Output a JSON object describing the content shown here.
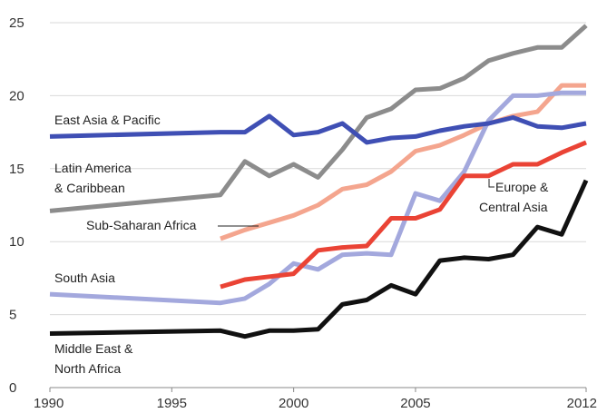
{
  "chart_data": {
    "type": "line",
    "title": "",
    "xlabel": "",
    "ylabel": "",
    "xlim": [
      1990,
      2012
    ],
    "ylim": [
      0,
      25
    ],
    "grid": true,
    "legend": "inline labels",
    "x_ticks": [
      "1990",
      "1995",
      "2000",
      "2005",
      "2012"
    ],
    "y_ticks": [
      "0",
      "5",
      "10",
      "15",
      "20",
      "25"
    ],
    "series": [
      {
        "name": "Latin America & Caribbean",
        "color": "#8c8c8c",
        "x": [
          1990,
          1997,
          1998,
          1999,
          2000,
          2001,
          2002,
          2003,
          2004,
          2005,
          2006,
          2007,
          2008,
          2009,
          2010,
          2011,
          2012
        ],
        "y": [
          12.1,
          13.2,
          15.5,
          14.5,
          15.3,
          14.4,
          16.3,
          18.5,
          19.1,
          20.4,
          20.5,
          21.2,
          22.4,
          22.9,
          23.3,
          23.3,
          24.8
        ]
      },
      {
        "name": "Sub-Saharan Africa",
        "color": "#f4a58e",
        "x": [
          1997,
          1998,
          1999,
          2000,
          2001,
          2002,
          2003,
          2004,
          2005,
          2006,
          2007,
          2008,
          2009,
          2010,
          2011,
          2012
        ],
        "y": [
          10.2,
          10.8,
          11.3,
          11.8,
          12.5,
          13.6,
          13.9,
          14.8,
          16.2,
          16.6,
          17.3,
          18.1,
          18.6,
          18.9,
          20.7,
          20.7
        ]
      },
      {
        "name": "South Asia",
        "color": "#a3a8dd",
        "x": [
          1990,
          1997,
          1998,
          1999,
          2000,
          2001,
          2002,
          2003,
          2004,
          2005,
          2006,
          2007,
          2008,
          2009,
          2010,
          2011,
          2012
        ],
        "y": [
          6.4,
          5.8,
          6.1,
          7.1,
          8.5,
          8.1,
          9.1,
          9.2,
          9.1,
          13.3,
          12.8,
          14.8,
          18.3,
          20.0,
          20.0,
          20.2,
          20.2
        ]
      },
      {
        "name": "Europe & Central Asia",
        "color": "#ea4335",
        "x": [
          1997,
          1998,
          1999,
          2000,
          2001,
          2002,
          2003,
          2004,
          2005,
          2006,
          2007,
          2008,
          2009,
          2010,
          2011,
          2012
        ],
        "y": [
          6.9,
          7.4,
          7.6,
          7.8,
          9.4,
          9.6,
          9.7,
          11.6,
          11.6,
          12.2,
          14.5,
          14.5,
          15.3,
          15.3,
          16.1,
          16.8
        ]
      },
      {
        "name": "East Asia & Pacific",
        "color": "#3f4fb4",
        "x": [
          1990,
          1997,
          1998,
          1999,
          2000,
          2001,
          2002,
          2003,
          2004,
          2005,
          2006,
          2007,
          2008,
          2009,
          2010,
          2011,
          2012
        ],
        "y": [
          17.2,
          17.5,
          17.5,
          18.6,
          17.3,
          17.5,
          18.1,
          16.8,
          17.1,
          17.2,
          17.6,
          17.9,
          18.1,
          18.5,
          17.9,
          17.8,
          18.1
        ]
      },
      {
        "name": "Middle East & North Africa",
        "color": "#111111",
        "x": [
          1990,
          1997,
          1998,
          1999,
          2000,
          2001,
          2002,
          2003,
          2004,
          2005,
          2006,
          2007,
          2008,
          2009,
          2010,
          2011,
          2012
        ],
        "y": [
          3.7,
          3.9,
          3.5,
          3.9,
          3.9,
          4.0,
          5.7,
          6.0,
          7.0,
          6.4,
          8.7,
          8.9,
          8.8,
          9.1,
          11.0,
          10.5,
          14.2
        ]
      }
    ],
    "annotations": {
      "east_asia": "East Asia & Pacific",
      "latin_line1": "Latin America",
      "latin_line2": "& Caribbean",
      "ssa": "Sub-Saharan Africa",
      "europe_line1": "Europe &",
      "europe_line2": "Central Asia",
      "south_asia": "South Asia",
      "mena_line1": "Middle East &",
      "mena_line2": "North Africa"
    }
  }
}
